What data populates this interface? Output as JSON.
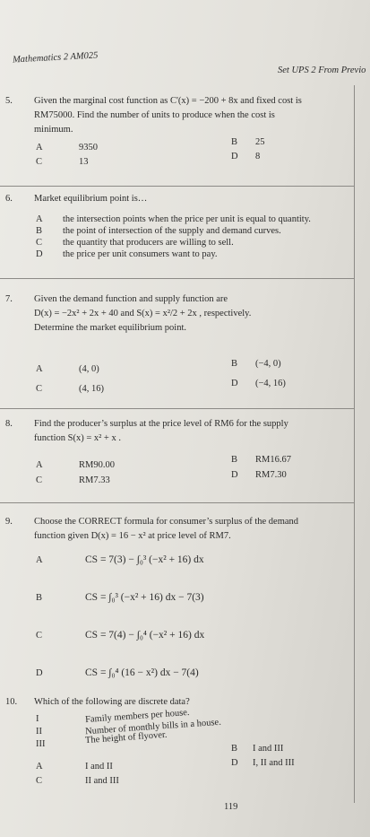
{
  "header": {
    "course": "Mathematics 2 AM025",
    "set": "Set UPS 2 From Previo"
  },
  "questions": [
    {
      "number": "5.",
      "lines": [
        "Given the marginal cost function as C'(x) = −200 + 8x and fixed cost is",
        "RM75000. Find the number of units to produce when the cost is",
        "minimum."
      ],
      "options": [
        {
          "letter": "A",
          "text": "9350"
        },
        {
          "letter": "B",
          "text": "25"
        },
        {
          "letter": "C",
          "text": "13"
        },
        {
          "letter": "D",
          "text": "8"
        }
      ]
    },
    {
      "number": "6.",
      "lines": [
        "Market equilibrium point is…"
      ],
      "options": [
        {
          "letter": "A",
          "text": "the intersection points when the price per unit is equal to quantity."
        },
        {
          "letter": "B",
          "text": "the point of intersection of the supply and demand curves."
        },
        {
          "letter": "C",
          "text": "the quantity that producers are willing to sell."
        },
        {
          "letter": "D",
          "text": "the price per unit consumers want to pay."
        }
      ]
    },
    {
      "number": "7.",
      "lines": [
        "Given the demand function and supply function are",
        "D(x) = −2x² + 2x + 40 and S(x) = x²/2 + 2x , respectively.",
        "Determine the market equilibrium point."
      ],
      "options": [
        {
          "letter": "A",
          "text": "(4, 0)"
        },
        {
          "letter": "B",
          "text": "(−4, 0)"
        },
        {
          "letter": "C",
          "text": "(4, 16)"
        },
        {
          "letter": "D",
          "text": "(−4, 16)"
        }
      ]
    },
    {
      "number": "8.",
      "lines": [
        "Find the producer’s surplus at the price level of RM6 for the supply",
        "function S(x) = x² + x ."
      ],
      "options": [
        {
          "letter": "A",
          "text": "RM90.00"
        },
        {
          "letter": "B",
          "text": "RM16.67"
        },
        {
          "letter": "C",
          "text": "RM7.33"
        },
        {
          "letter": "D",
          "text": "RM7.30"
        }
      ]
    },
    {
      "number": "9.",
      "lines": [
        "Choose the CORRECT formula for consumer’s surplus of the demand",
        "function given D(x) = 16 − x² at price level of RM7."
      ],
      "options": [
        {
          "letter": "A",
          "text": "CS = 7(3) − ∫₀³ (−x² + 16) dx"
        },
        {
          "letter": "B",
          "text": "CS = ∫₀³ (−x² + 16) dx − 7(3)"
        },
        {
          "letter": "C",
          "text": "CS = 7(4) − ∫₀⁴ (−x² + 16) dx"
        },
        {
          "letter": "D",
          "text": "CS = ∫₀⁴ (16 − x²) dx − 7(4)"
        }
      ]
    },
    {
      "number": "10.",
      "lines": [
        "Which of the following are discrete data?"
      ],
      "items": [
        {
          "numeral": "I",
          "text": "Family members per house."
        },
        {
          "numeral": "II",
          "text": "Number of monthly bills in a house."
        },
        {
          "numeral": "III",
          "text": "The height of flyover."
        }
      ],
      "options": [
        {
          "letter": "A",
          "text": "I and II"
        },
        {
          "letter": "B",
          "text": "I and III"
        },
        {
          "letter": "C",
          "text": "II and III"
        },
        {
          "letter": "D",
          "text": "I, II and III"
        }
      ]
    }
  ],
  "page_number": "119"
}
